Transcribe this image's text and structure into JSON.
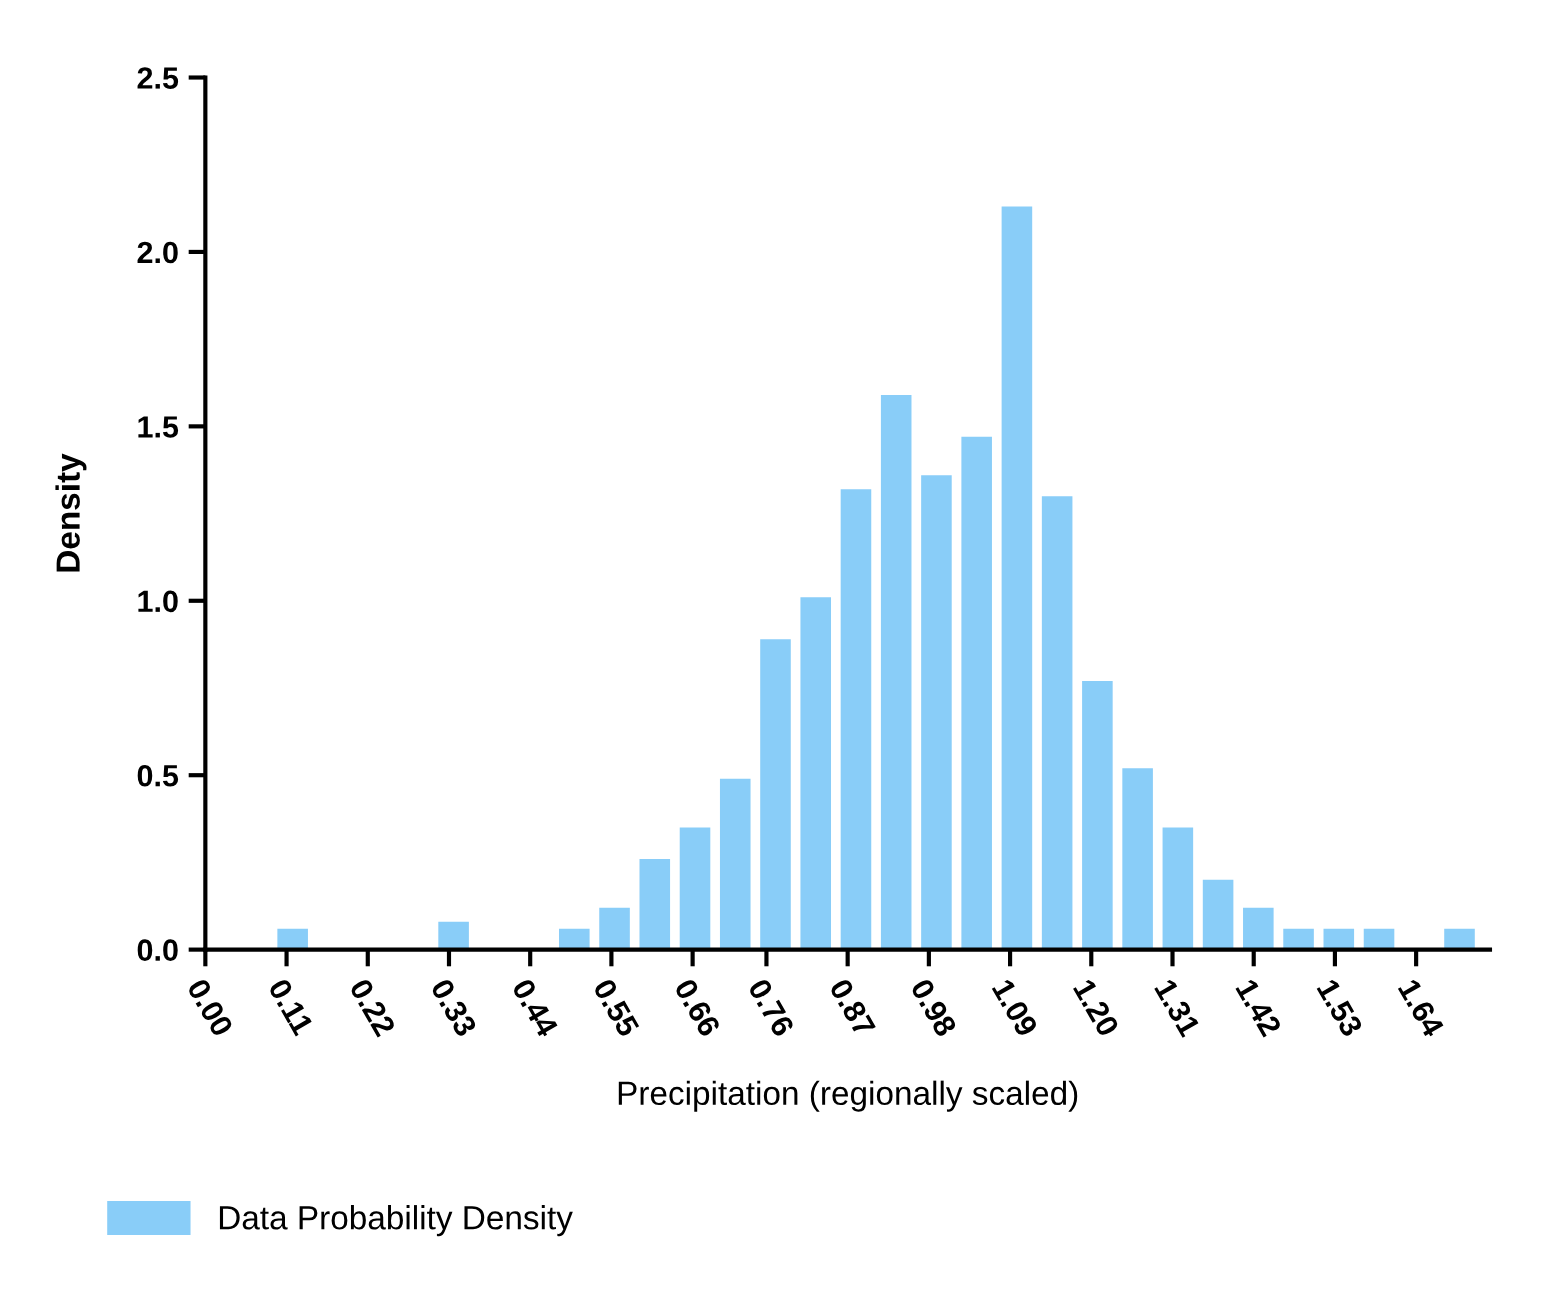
{
  "chart_data": {
    "type": "histogram",
    "xlabel": "Precipitation (regionally scaled)",
    "ylabel": "Density",
    "bins": [
      0.091,
      0.1455,
      0.2,
      0.2545,
      0.309,
      0.3635,
      0.418,
      0.4725,
      0.527,
      0.5815,
      0.636,
      0.6905,
      0.745,
      0.7995,
      0.854,
      0.9085,
      0.963,
      1.0175,
      1.072,
      1.1265,
      1.181,
      1.2355,
      1.29,
      1.3445,
      1.399,
      1.4535,
      1.508,
      1.5625,
      1.617,
      1.6715,
      1.726
    ],
    "series": [
      {
        "name": "Data Probability Density",
        "color": "#89cdf8",
        "values": [
          0.06,
          0,
          0,
          0,
          0.08,
          0,
          0,
          0.06,
          0.12,
          0.26,
          0.35,
          0.49,
          0.89,
          1.01,
          1.32,
          1.59,
          1.36,
          1.47,
          2.13,
          1.3,
          0.77,
          0.52,
          0.35,
          0.2,
          0.12,
          0.06,
          0.06,
          0.06,
          0,
          0.06
        ]
      }
    ],
    "xlim": [
      0,
      1.74
    ],
    "ylim": [
      0,
      2.5
    ],
    "xticks": [
      {
        "value": 0,
        "label": "0.00"
      },
      {
        "value": 0.11,
        "label": "0.11"
      },
      {
        "value": 0.22,
        "label": "0.22"
      },
      {
        "value": 0.33,
        "label": "0.33"
      },
      {
        "value": 0.44,
        "label": "0.44"
      },
      {
        "value": 0.55,
        "label": "0.55"
      },
      {
        "value": 0.66,
        "label": "0.66"
      },
      {
        "value": 0.76,
        "label": "0.76"
      },
      {
        "value": 0.87,
        "label": "0.87"
      },
      {
        "value": 0.98,
        "label": "0.98"
      },
      {
        "value": 1.09,
        "label": "1.09"
      },
      {
        "value": 1.2,
        "label": "1.20"
      },
      {
        "value": 1.31,
        "label": "1.31"
      },
      {
        "value": 1.42,
        "label": "1.42"
      },
      {
        "value": 1.53,
        "label": "1.53"
      },
      {
        "value": 1.64,
        "label": "1.64"
      }
    ],
    "yticks": [
      {
        "value": 0,
        "label": "0.0"
      },
      {
        "value": 0.5,
        "label": "0.5"
      },
      {
        "value": 1,
        "label": "1.0"
      },
      {
        "value": 1.5,
        "label": "1.5"
      },
      {
        "value": 2,
        "label": "2.0"
      },
      {
        "value": 2.5,
        "label": "2.5"
      }
    ],
    "grid": false,
    "legend": "bottom left"
  }
}
